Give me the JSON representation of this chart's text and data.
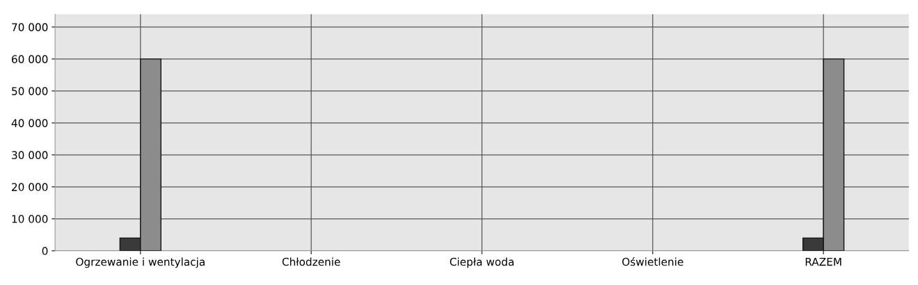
{
  "chart_data": {
    "type": "bar",
    "categories": [
      "Ogrzewanie i wentylacja",
      "Chłodzenie",
      "Ciepła woda",
      "Oświetlenie",
      "RAZEM"
    ],
    "series": [
      {
        "color": "#3a3a3a",
        "values": [
          4000,
          0,
          0,
          0,
          4000
        ]
      },
      {
        "color": "#8c8c8c",
        "values": [
          60000,
          0,
          0,
          0,
          60000
        ]
      }
    ],
    "ylim": [
      0,
      74000
    ],
    "yticks": [
      0,
      {
        "value": 10000,
        "label": "10 000"
      },
      {
        "value": 20000,
        "label": "20 000"
      },
      {
        "value": 30000,
        "label": "30 000"
      },
      {
        "value": 40000,
        "label": "40 000"
      },
      {
        "value": 50000,
        "label": "50 000"
      },
      {
        "value": 60000,
        "label": "60 000"
      },
      {
        "value": 70000,
        "label": "70 000"
      }
    ],
    "grid": true
  }
}
